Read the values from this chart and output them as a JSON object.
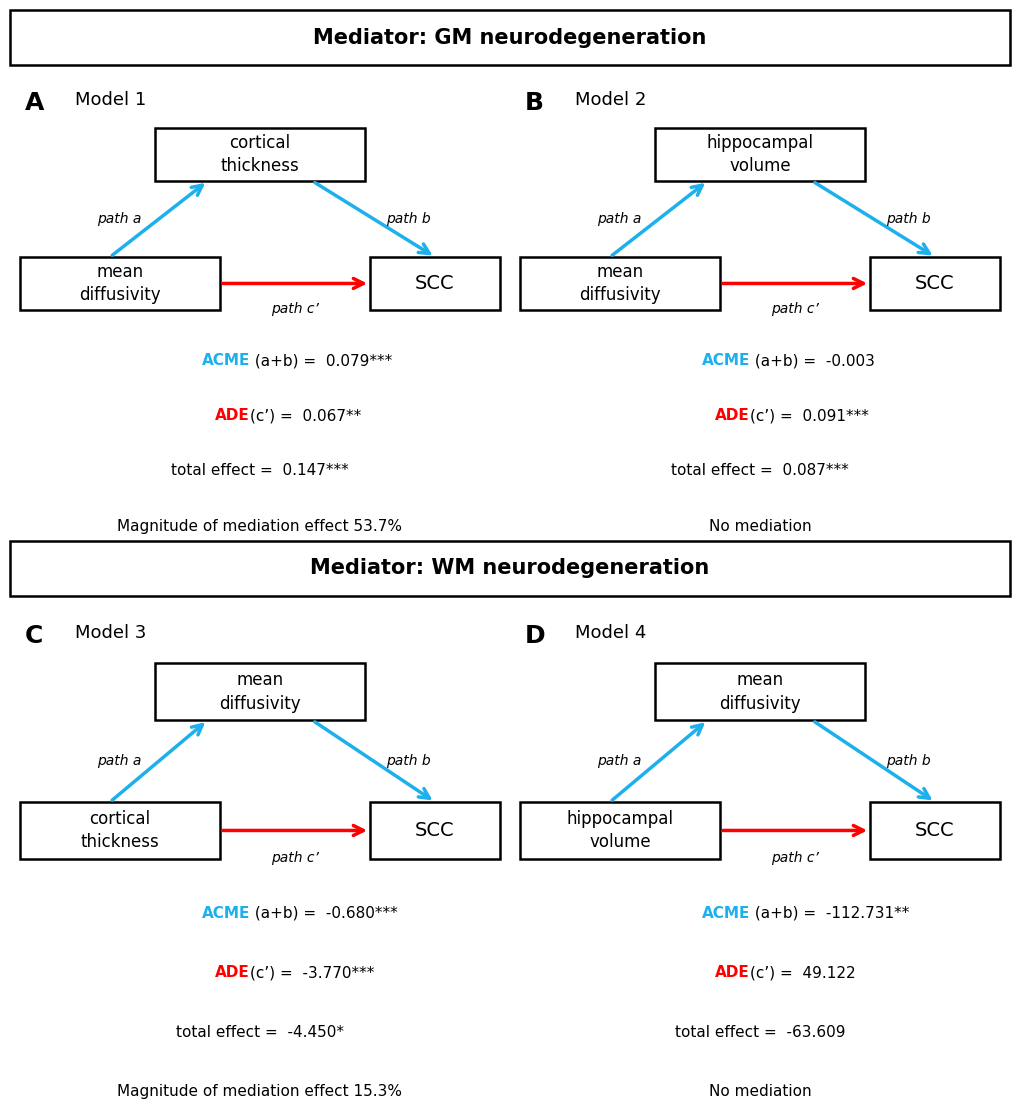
{
  "title_top": "Mediator: GM neurodegeneration",
  "title_bottom": "Mediator: WM neurodegeneration",
  "panels": [
    {
      "label": "A",
      "model": "Model 1",
      "mediator_text": "cortical\nthickness",
      "x_text": "mean\ndiffusivity",
      "y_text": "SCC",
      "acme_label": "ACME",
      "acme_value": " (a+b) =  0.079***",
      "ade_label": "ADE",
      "ade_value": "(c’) =  0.067**",
      "total_value": "total effect =  0.147***",
      "magnitude": "Magnitude of mediation effect 53.7%"
    },
    {
      "label": "B",
      "model": "Model 2",
      "mediator_text": "hippocampal\nvolume",
      "x_text": "mean\ndiffusivity",
      "y_text": "SCC",
      "acme_label": "ACME",
      "acme_value": " (a+b) =  -0.003",
      "ade_label": "ADE",
      "ade_value": "(c’) =  0.091***",
      "total_value": "total effect =  0.087***",
      "magnitude": "No mediation"
    },
    {
      "label": "C",
      "model": "Model 3",
      "mediator_text": "mean\ndiffusivity",
      "x_text": "cortical\nthickness",
      "y_text": "SCC",
      "acme_label": "ACME",
      "acme_value": " (a+b) =  -0.680***",
      "ade_label": "ADE",
      "ade_value": "(c’) =  -3.770***",
      "total_value": "total effect =  -4.450*",
      "magnitude": "Magnitude of mediation effect 15.3%"
    },
    {
      "label": "D",
      "model": "Model 4",
      "mediator_text": "mean\ndiffusivity",
      "x_text": "hippocampal\nvolume",
      "y_text": "SCC",
      "acme_label": "ACME",
      "acme_value": " (a+b) =  -112.731**",
      "ade_label": "ADE",
      "ade_value": "(c’) =  49.122",
      "total_value": "total effect =  -63.609",
      "magnitude": "No mediation"
    }
  ],
  "cyan_color": "#1EB0EC",
  "red_color": "#FF0000",
  "background_color": "#FFFFFF"
}
